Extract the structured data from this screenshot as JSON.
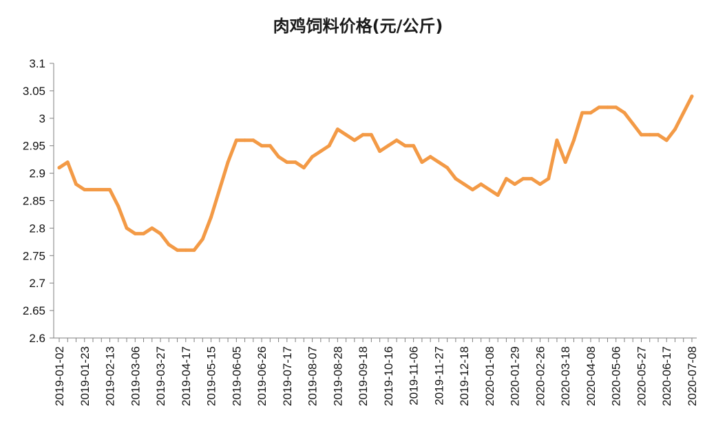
{
  "chart_data": {
    "type": "line",
    "title": "肉鸡饲料价格(元/公斤)",
    "xlabel": "",
    "ylabel": "",
    "ylim": [
      2.6,
      3.1
    ],
    "yticks": [
      "3.1",
      "3.05",
      "3",
      "2.95",
      "2.9",
      "2.85",
      "2.8",
      "2.75",
      "2.7",
      "2.65",
      "2.6"
    ],
    "xtick_labels": [
      "2019-01-02",
      "2019-01-23",
      "2019-02-13",
      "2019-03-06",
      "2019-03-27",
      "2019-04-17",
      "2019-05-15",
      "2019-06-05",
      "2019-06-26",
      "2019-07-17",
      "2019-08-07",
      "2019-08-28",
      "2019-09-18",
      "2019-10-16",
      "2019-11-06",
      "2019-11-27",
      "2019-12-18",
      "2020-01-08",
      "2020-01-29",
      "2020-02-26",
      "2020-03-18",
      "2020-04-08",
      "2020-05-06",
      "2020-05-27",
      "2020-06-17",
      "2020-07-08"
    ],
    "grid": false,
    "legend": "none",
    "line_color": "#F39A46",
    "series": [
      {
        "values": [
          2.91,
          2.92,
          2.88,
          2.87,
          2.87,
          2.87,
          2.87,
          2.84,
          2.8,
          2.79,
          2.79,
          2.8,
          2.79,
          2.77,
          2.76,
          2.76,
          2.76,
          2.78,
          2.82,
          2.87,
          2.92,
          2.96,
          2.96,
          2.96,
          2.95,
          2.95,
          2.93,
          2.92,
          2.92,
          2.91,
          2.93,
          2.94,
          2.95,
          2.98,
          2.97,
          2.96,
          2.97,
          2.97,
          2.94,
          2.95,
          2.96,
          2.95,
          2.95,
          2.92,
          2.93,
          2.92,
          2.91,
          2.89,
          2.88,
          2.87,
          2.88,
          2.87,
          2.86,
          2.89,
          2.88,
          2.89,
          2.89,
          2.88,
          2.89,
          2.96,
          2.92,
          2.96,
          3.01,
          3.01,
          3.02,
          3.02,
          3.02,
          3.01,
          2.99,
          2.97,
          2.97,
          2.97,
          2.96,
          2.98,
          3.01,
          3.04
        ]
      }
    ]
  }
}
